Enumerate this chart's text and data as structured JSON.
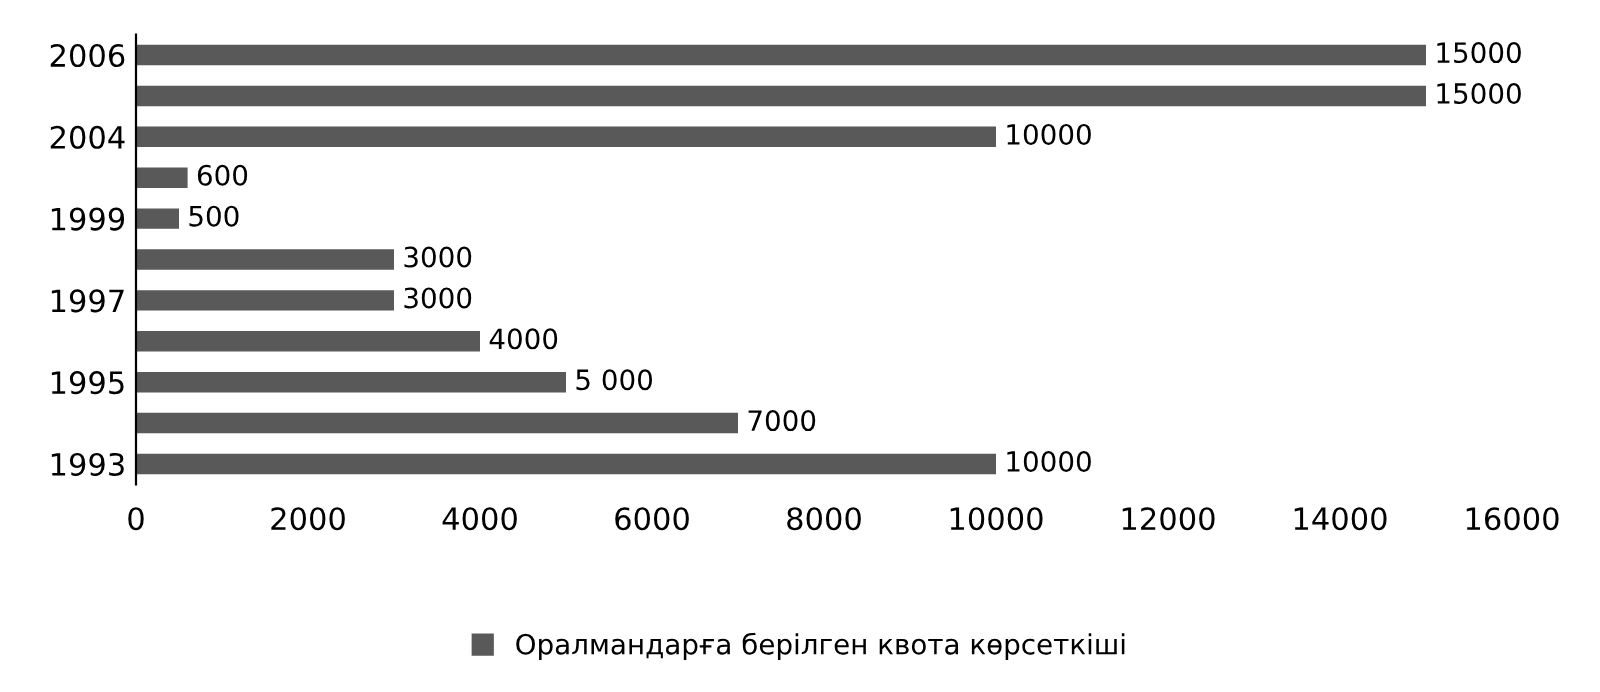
{
  "chart_data": {
    "type": "bar",
    "orientation": "horizontal",
    "categories": [
      "2006",
      null,
      "2004",
      null,
      "1999",
      null,
      "1997",
      null,
      "1995",
      null,
      "1993"
    ],
    "series": [
      {
        "name": "Оралмандарға берілген квота көрсеткіші",
        "color": "#595959",
        "values": [
          15000,
          15000,
          10000,
          600,
          500,
          3000,
          3000,
          4000,
          5000,
          7000,
          10000
        ],
        "value_labels": [
          "15000",
          "15000",
          "10000",
          "600",
          "500",
          "3000",
          "3000",
          "4000",
          "5 000",
          "7000",
          "10000"
        ]
      }
    ],
    "xlim": [
      0,
      16000
    ],
    "xticks": [
      0,
      2000,
      4000,
      6000,
      8000,
      10000,
      12000,
      14000,
      16000
    ],
    "grid": false,
    "legend": "bottom"
  }
}
